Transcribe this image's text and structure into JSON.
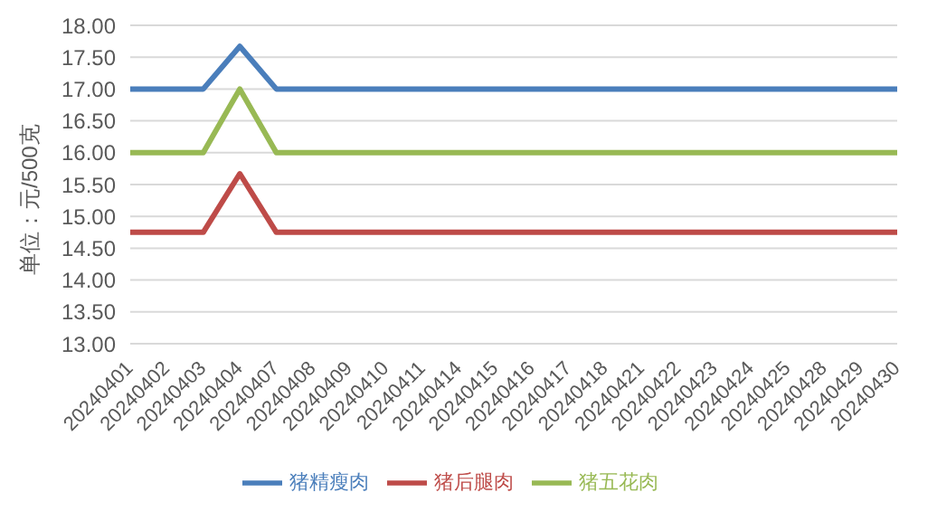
{
  "chart_data": {
    "type": "line",
    "ylabel": "单位：元/500克",
    "categories": [
      "20240401",
      "20240402",
      "20240403",
      "20240404",
      "20240407",
      "20240408",
      "20240409",
      "20240410",
      "20240411",
      "20240414",
      "20240415",
      "20240416",
      "20240417",
      "20240418",
      "20240421",
      "20240422",
      "20240423",
      "20240424",
      "20240425",
      "20240428",
      "20240429",
      "20240430"
    ],
    "series": [
      {
        "name": "猪精瘦肉",
        "color": "#4a7ebb",
        "values": [
          17,
          17,
          17,
          17.67,
          17,
          17,
          17,
          17,
          17,
          17,
          17,
          17,
          17,
          17,
          17,
          17,
          17,
          17,
          17,
          17,
          17,
          17
        ]
      },
      {
        "name": "猪后腿肉",
        "color": "#be4b48",
        "values": [
          14.75,
          14.75,
          14.75,
          15.67,
          14.75,
          14.75,
          14.75,
          14.75,
          14.75,
          14.75,
          14.75,
          14.75,
          14.75,
          14.75,
          14.75,
          14.75,
          14.75,
          14.75,
          14.75,
          14.75,
          14.75,
          14.75
        ]
      },
      {
        "name": "猪五花肉",
        "color": "#98b954",
        "values": [
          16,
          16,
          16,
          17,
          16,
          16,
          16,
          16,
          16,
          16,
          16,
          16,
          16,
          16,
          16,
          16,
          16,
          16,
          16,
          16,
          16,
          16
        ]
      }
    ],
    "ylim": [
      13,
      18
    ],
    "yticks": [
      {
        "value": 13,
        "label": "13.00"
      },
      {
        "value": 13.5,
        "label": "13.50"
      },
      {
        "value": 14,
        "label": "14.00"
      },
      {
        "value": 14.5,
        "label": "14.50"
      },
      {
        "value": 15,
        "label": "15.00"
      },
      {
        "value": 15.5,
        "label": "15.50"
      },
      {
        "value": 16,
        "label": "16.00"
      },
      {
        "value": 16.5,
        "label": "16.50"
      },
      {
        "value": 17,
        "label": "17.00"
      },
      {
        "value": 17.5,
        "label": "17.50"
      },
      {
        "value": 18,
        "label": "18.00"
      }
    ],
    "grid": "y",
    "legend": "bottom",
    "marker": "none",
    "line_style": "solid"
  }
}
